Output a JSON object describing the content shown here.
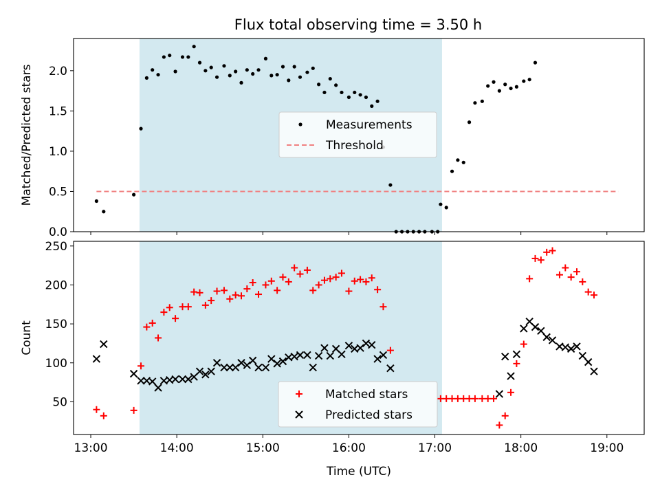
{
  "chart_data": {
    "title": "Flux total observing time = 3.50 h",
    "xlabel": "Time (UTC)",
    "x_tick_labels": [
      "13:00",
      "14:00",
      "15:00",
      "16:00",
      "17:00",
      "18:00",
      "19:00"
    ],
    "x_ticks_hours": [
      13,
      14,
      15,
      16,
      17,
      18,
      19
    ],
    "xlim": [
      "12:48",
      "19:26"
    ],
    "shaded_span": {
      "start": "13:34",
      "end": "17:05",
      "color": "#d3e9f0"
    },
    "panels": [
      {
        "type": "scatter",
        "ylabel": "Matched/Predicted stars",
        "ylim": [
          0,
          2.4
        ],
        "y_ticks": [
          0.0,
          0.5,
          1.0,
          1.5,
          2.0
        ],
        "y_tick_labels": [
          "0.0",
          "0.5",
          "1.0",
          "1.5",
          "2.0"
        ],
        "legend_position": "center-right",
        "series": [
          {
            "name": "Measurements",
            "marker": "dot",
            "color": "#000000",
            "points": [
              [
                "13:04",
                0.38
              ],
              [
                "13:09",
                0.25
              ],
              [
                "13:30",
                0.46
              ],
              [
                "13:35",
                1.28
              ],
              [
                "13:39",
                1.91
              ],
              [
                "13:43",
                2.01
              ],
              [
                "13:47",
                1.95
              ],
              [
                "13:51",
                2.17
              ],
              [
                "13:55",
                2.19
              ],
              [
                "13:59",
                1.99
              ],
              [
                "14:04",
                2.17
              ],
              [
                "14:08",
                2.17
              ],
              [
                "14:12",
                2.3
              ],
              [
                "14:16",
                2.1
              ],
              [
                "14:20",
                2.0
              ],
              [
                "14:24",
                2.04
              ],
              [
                "14:28",
                1.92
              ],
              [
                "14:33",
                2.06
              ],
              [
                "14:37",
                1.94
              ],
              [
                "14:41",
                1.99
              ],
              [
                "14:45",
                1.85
              ],
              [
                "14:49",
                2.01
              ],
              [
                "14:53",
                1.96
              ],
              [
                "14:57",
                2.01
              ],
              [
                "15:02",
                2.15
              ],
              [
                "15:06",
                1.94
              ],
              [
                "15:10",
                1.95
              ],
              [
                "15:14",
                2.05
              ],
              [
                "15:18",
                1.88
              ],
              [
                "15:22",
                2.05
              ],
              [
                "15:26",
                1.92
              ],
              [
                "15:31",
                1.98
              ],
              [
                "15:35",
                2.03
              ],
              [
                "15:39",
                1.83
              ],
              [
                "15:43",
                1.73
              ],
              [
                "15:47",
                1.9
              ],
              [
                "15:51",
                1.82
              ],
              [
                "15:55",
                1.73
              ],
              [
                "16:00",
                1.67
              ],
              [
                "16:04",
                1.73
              ],
              [
                "16:08",
                1.7
              ],
              [
                "16:12",
                1.67
              ],
              [
                "16:16",
                1.56
              ],
              [
                "16:20",
                1.62
              ],
              [
                "16:24",
                1.05
              ],
              [
                "16:29",
                0.58
              ],
              [
                "16:33",
                0.0
              ],
              [
                "16:37",
                0.0
              ],
              [
                "16:41",
                0.0
              ],
              [
                "16:45",
                0.0
              ],
              [
                "16:49",
                0.0
              ],
              [
                "16:53",
                0.0
              ],
              [
                "16:58",
                0.0
              ],
              [
                "17:02",
                0.0
              ],
              [
                "17:04",
                0.34
              ],
              [
                "17:08",
                0.3
              ],
              [
                "17:12",
                0.75
              ],
              [
                "17:16",
                0.89
              ],
              [
                "17:20",
                0.86
              ],
              [
                "17:24",
                1.36
              ],
              [
                "17:28",
                1.6
              ],
              [
                "17:33",
                1.62
              ],
              [
                "17:37",
                1.81
              ],
              [
                "17:41",
                1.86
              ],
              [
                "17:45",
                1.75
              ],
              [
                "17:49",
                1.83
              ],
              [
                "17:53",
                1.78
              ],
              [
                "17:57",
                1.8
              ],
              [
                "18:02",
                1.87
              ],
              [
                "18:06",
                1.89
              ],
              [
                "18:10",
                2.1
              ]
            ]
          },
          {
            "name": "Threshold",
            "marker": "dashed-line",
            "color": "#f08080",
            "points": [
              [
                "13:04",
                0.5
              ],
              [
                "19:08",
                0.5
              ]
            ]
          }
        ]
      },
      {
        "type": "scatter",
        "ylabel": "Count",
        "ylim": [
          8,
          256
        ],
        "y_ticks": [
          50,
          100,
          150,
          200,
          250
        ],
        "y_tick_labels": [
          "50",
          "100",
          "150",
          "200",
          "250"
        ],
        "legend_position": "lower-center",
        "series": [
          {
            "name": "Matched stars",
            "marker": "plus",
            "color": "#ff0000",
            "points": [
              [
                "13:04",
                40
              ],
              [
                "13:09",
                32
              ],
              [
                "13:30",
                39
              ],
              [
                "13:35",
                96
              ],
              [
                "13:39",
                146
              ],
              [
                "13:43",
                151
              ],
              [
                "13:47",
                132
              ],
              [
                "13:51",
                165
              ],
              [
                "13:55",
                171
              ],
              [
                "13:59",
                157
              ],
              [
                "14:04",
                172
              ],
              [
                "14:08",
                172
              ],
              [
                "14:12",
                191
              ],
              [
                "14:16",
                190
              ],
              [
                "14:20",
                174
              ],
              [
                "14:24",
                180
              ],
              [
                "14:28",
                192
              ],
              [
                "14:33",
                193
              ],
              [
                "14:37",
                182
              ],
              [
                "14:41",
                187
              ],
              [
                "14:45",
                186
              ],
              [
                "14:49",
                195
              ],
              [
                "14:53",
                203
              ],
              [
                "14:57",
                188
              ],
              [
                "15:02",
                200
              ],
              [
                "15:06",
                205
              ],
              [
                "15:10",
                193
              ],
              [
                "15:14",
                210
              ],
              [
                "15:18",
                204
              ],
              [
                "15:22",
                222
              ],
              [
                "15:26",
                214
              ],
              [
                "15:31",
                219
              ],
              [
                "15:35",
                193
              ],
              [
                "15:39",
                200
              ],
              [
                "15:43",
                206
              ],
              [
                "15:47",
                208
              ],
              [
                "15:51",
                210
              ],
              [
                "15:55",
                215
              ],
              [
                "16:00",
                192
              ],
              [
                "16:04",
                205
              ],
              [
                "16:08",
                207
              ],
              [
                "16:12",
                204
              ],
              [
                "16:16",
                209
              ],
              [
                "16:20",
                194
              ],
              [
                "16:24",
                172
              ],
              [
                "16:29",
                116
              ],
              [
                "17:04",
                54
              ],
              [
                "17:08",
                54
              ],
              [
                "17:12",
                54
              ],
              [
                "17:16",
                54
              ],
              [
                "17:20",
                54
              ],
              [
                "17:24",
                54
              ],
              [
                "17:28",
                54
              ],
              [
                "17:33",
                54
              ],
              [
                "17:37",
                54
              ],
              [
                "17:41",
                54
              ],
              [
                "17:45",
                20
              ],
              [
                "17:49",
                32
              ],
              [
                "17:53",
                62
              ],
              [
                "17:57",
                99
              ],
              [
                "18:02",
                124
              ],
              [
                "18:06",
                208
              ],
              [
                "18:10",
                234
              ],
              [
                "18:14",
                232
              ],
              [
                "18:18",
                242
              ],
              [
                "18:22",
                244
              ],
              [
                "18:27",
                213
              ],
              [
                "18:31",
                222
              ],
              [
                "18:35",
                210
              ],
              [
                "18:39",
                217
              ],
              [
                "18:43",
                204
              ],
              [
                "18:47",
                191
              ],
              [
                "18:51",
                187
              ]
            ]
          },
          {
            "name": "Predicted stars",
            "marker": "x",
            "color": "#000000",
            "points": [
              [
                "13:04",
                105
              ],
              [
                "13:09",
                124
              ],
              [
                "13:30",
                86
              ],
              [
                "13:35",
                77
              ],
              [
                "13:39",
                77
              ],
              [
                "13:43",
                76
              ],
              [
                "13:47",
                68
              ],
              [
                "13:51",
                77
              ],
              [
                "13:55",
                78
              ],
              [
                "13:59",
                79
              ],
              [
                "14:04",
                79
              ],
              [
                "14:08",
                79
              ],
              [
                "14:12",
                82
              ],
              [
                "14:16",
                89
              ],
              [
                "14:20",
                85
              ],
              [
                "14:24",
                89
              ],
              [
                "14:28",
                100
              ],
              [
                "14:33",
                94
              ],
              [
                "14:37",
                94
              ],
              [
                "14:41",
                94
              ],
              [
                "14:45",
                100
              ],
              [
                "14:49",
                97
              ],
              [
                "14:53",
                103
              ],
              [
                "14:57",
                94
              ],
              [
                "15:02",
                94
              ],
              [
                "15:06",
                105
              ],
              [
                "15:10",
                99
              ],
              [
                "15:14",
                102
              ],
              [
                "15:18",
                107
              ],
              [
                "15:22",
                108
              ],
              [
                "15:26",
                110
              ],
              [
                "15:31",
                110
              ],
              [
                "15:35",
                94
              ],
              [
                "15:39",
                109
              ],
              [
                "15:43",
                119
              ],
              [
                "15:47",
                109
              ],
              [
                "15:51",
                118
              ],
              [
                "15:55",
                111
              ],
              [
                "16:00",
                122
              ],
              [
                "16:04",
                118
              ],
              [
                "16:08",
                119
              ],
              [
                "16:12",
                125
              ],
              [
                "16:16",
                123
              ],
              [
                "16:20",
                105
              ],
              [
                "16:24",
                110
              ],
              [
                "16:29",
                93
              ],
              [
                "17:45",
                60
              ],
              [
                "17:49",
                108
              ],
              [
                "17:53",
                83
              ],
              [
                "17:57",
                111
              ],
              [
                "18:02",
                144
              ],
              [
                "18:06",
                153
              ],
              [
                "18:10",
                146
              ],
              [
                "18:14",
                141
              ],
              [
                "18:18",
                133
              ],
              [
                "18:22",
                129
              ],
              [
                "18:27",
                121
              ],
              [
                "18:31",
                120
              ],
              [
                "18:35",
                118
              ],
              [
                "18:39",
                121
              ],
              [
                "18:43",
                109
              ],
              [
                "18:47",
                101
              ],
              [
                "18:51",
                89
              ]
            ]
          }
        ]
      }
    ]
  },
  "colors": {
    "shade": "#d3e9f0",
    "threshold": "#f08080",
    "matched": "#ff0000",
    "predicted": "#000000"
  }
}
